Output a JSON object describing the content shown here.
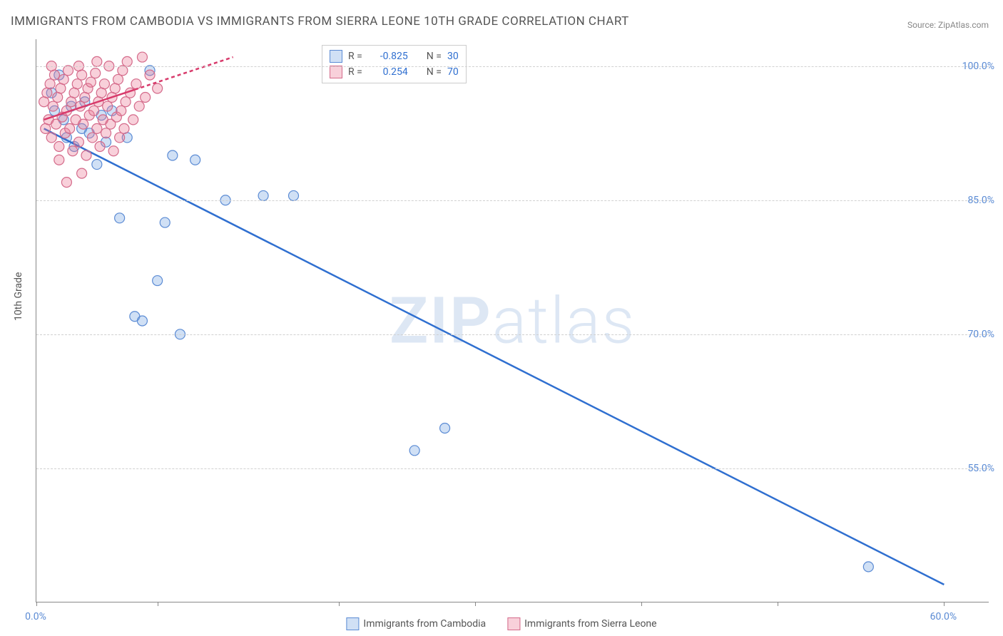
{
  "title": "IMMIGRANTS FROM CAMBODIA VS IMMIGRANTS FROM SIERRA LEONE 10TH GRADE CORRELATION CHART",
  "source": "Source: ZipAtlas.com",
  "watermark": {
    "prefix": "ZIP",
    "suffix": "atlas"
  },
  "ylabel": "10th Grade",
  "chart": {
    "type": "scatter",
    "background_color": "#ffffff",
    "grid_color": "#d0d0d0",
    "axis_color": "#888888",
    "label_fontsize": 14,
    "title_fontsize": 17,
    "xlim": [
      0,
      63
    ],
    "ylim": [
      40,
      103
    ],
    "y_ticks": [
      {
        "v": 100,
        "label": "100.0%"
      },
      {
        "v": 85,
        "label": "85.0%"
      },
      {
        "v": 70,
        "label": "70.0%"
      },
      {
        "v": 55,
        "label": "55.0%"
      }
    ],
    "x_ticks_major": [
      0,
      60
    ],
    "x_tick_labels": [
      {
        "v": 0,
        "label": "0.0%"
      },
      {
        "v": 60,
        "label": "60.0%"
      }
    ],
    "x_ticks_minor": [
      8,
      20,
      29,
      40,
      49
    ],
    "marker_radius": 7,
    "marker_stroke_width": 1.2,
    "series": [
      {
        "id": "cambodia",
        "label": "Immigrants from Cambodia",
        "fill": "rgba(120,165,225,0.35)",
        "stroke": "#5b8bd4",
        "R": "-0.825",
        "N": "30",
        "trend": {
          "stroke": "#2f6fd0",
          "width": 2.5,
          "p1": {
            "x": 0.5,
            "y": 93
          },
          "p2": {
            "x": 60,
            "y": 42
          },
          "dashed_from_x": null
        },
        "points": [
          {
            "x": 1.0,
            "y": 97
          },
          {
            "x": 1.2,
            "y": 95
          },
          {
            "x": 1.5,
            "y": 99
          },
          {
            "x": 1.8,
            "y": 94
          },
          {
            "x": 2.0,
            "y": 92
          },
          {
            "x": 2.3,
            "y": 95.5
          },
          {
            "x": 2.5,
            "y": 91
          },
          {
            "x": 3.0,
            "y": 93
          },
          {
            "x": 3.2,
            "y": 96
          },
          {
            "x": 3.5,
            "y": 92.5
          },
          {
            "x": 4.0,
            "y": 89
          },
          {
            "x": 4.3,
            "y": 94.5
          },
          {
            "x": 4.6,
            "y": 91.5
          },
          {
            "x": 5.0,
            "y": 95
          },
          {
            "x": 5.5,
            "y": 83
          },
          {
            "x": 6.0,
            "y": 92
          },
          {
            "x": 6.5,
            "y": 72
          },
          {
            "x": 7.0,
            "y": 71.5
          },
          {
            "x": 8.0,
            "y": 76
          },
          {
            "x": 8.5,
            "y": 82.5
          },
          {
            "x": 9.0,
            "y": 90
          },
          {
            "x": 9.5,
            "y": 70
          },
          {
            "x": 10.5,
            "y": 89.5
          },
          {
            "x": 12.5,
            "y": 85
          },
          {
            "x": 15,
            "y": 85.5
          },
          {
            "x": 17,
            "y": 85.5
          },
          {
            "x": 25,
            "y": 57
          },
          {
            "x": 27,
            "y": 59.5
          },
          {
            "x": 55,
            "y": 44
          },
          {
            "x": 7.5,
            "y": 99.5
          }
        ]
      },
      {
        "id": "sierra_leone",
        "label": "Immigrants from Sierra Leone",
        "fill": "rgba(235,120,150,0.35)",
        "stroke": "#d46a8a",
        "R": "0.254",
        "N": "70",
        "trend": {
          "stroke": "#d83a6b",
          "width": 2.5,
          "p1": {
            "x": 0.5,
            "y": 94
          },
          "p2": {
            "x": 13,
            "y": 101
          },
          "dashed_from_x": 6.5
        },
        "points": [
          {
            "x": 0.5,
            "y": 96
          },
          {
            "x": 0.6,
            "y": 93
          },
          {
            "x": 0.7,
            "y": 97
          },
          {
            "x": 0.8,
            "y": 94
          },
          {
            "x": 0.9,
            "y": 98
          },
          {
            "x": 1.0,
            "y": 92
          },
          {
            "x": 1.1,
            "y": 95.5
          },
          {
            "x": 1.2,
            "y": 99
          },
          {
            "x": 1.3,
            "y": 93.5
          },
          {
            "x": 1.4,
            "y": 96.5
          },
          {
            "x": 1.5,
            "y": 91
          },
          {
            "x": 1.6,
            "y": 97.5
          },
          {
            "x": 1.7,
            "y": 94.3
          },
          {
            "x": 1.8,
            "y": 98.5
          },
          {
            "x": 1.9,
            "y": 92.5
          },
          {
            "x": 2.0,
            "y": 95
          },
          {
            "x": 2.1,
            "y": 99.5
          },
          {
            "x": 2.2,
            "y": 93
          },
          {
            "x": 2.3,
            "y": 96
          },
          {
            "x": 2.4,
            "y": 90.5
          },
          {
            "x": 2.5,
            "y": 97
          },
          {
            "x": 2.6,
            "y": 94
          },
          {
            "x": 2.7,
            "y": 98
          },
          {
            "x": 2.8,
            "y": 91.5
          },
          {
            "x": 2.9,
            "y": 95.5
          },
          {
            "x": 3.0,
            "y": 99
          },
          {
            "x": 3.1,
            "y": 93.5
          },
          {
            "x": 3.2,
            "y": 96.5
          },
          {
            "x": 3.3,
            "y": 90
          },
          {
            "x": 3.4,
            "y": 97.5
          },
          {
            "x": 3.5,
            "y": 94.5
          },
          {
            "x": 3.6,
            "y": 98.2
          },
          {
            "x": 3.7,
            "y": 92
          },
          {
            "x": 3.8,
            "y": 95
          },
          {
            "x": 3.9,
            "y": 99.2
          },
          {
            "x": 4.0,
            "y": 93
          },
          {
            "x": 4.1,
            "y": 96
          },
          {
            "x": 4.2,
            "y": 91
          },
          {
            "x": 4.3,
            "y": 97
          },
          {
            "x": 4.4,
            "y": 94
          },
          {
            "x": 4.5,
            "y": 98
          },
          {
            "x": 4.6,
            "y": 92.5
          },
          {
            "x": 4.7,
            "y": 95.5
          },
          {
            "x": 4.8,
            "y": 100
          },
          {
            "x": 4.9,
            "y": 93.5
          },
          {
            "x": 5.0,
            "y": 96.5
          },
          {
            "x": 5.1,
            "y": 90.5
          },
          {
            "x": 5.2,
            "y": 97.5
          },
          {
            "x": 5.3,
            "y": 94.3
          },
          {
            "x": 5.4,
            "y": 98.5
          },
          {
            "x": 5.5,
            "y": 92
          },
          {
            "x": 5.6,
            "y": 95
          },
          {
            "x": 5.7,
            "y": 99.5
          },
          {
            "x": 5.8,
            "y": 93
          },
          {
            "x": 5.9,
            "y": 96
          },
          {
            "x": 6.0,
            "y": 100.5
          },
          {
            "x": 6.2,
            "y": 97
          },
          {
            "x": 6.4,
            "y": 94
          },
          {
            "x": 6.6,
            "y": 98
          },
          {
            "x": 6.8,
            "y": 95.5
          },
          {
            "x": 7.0,
            "y": 101
          },
          {
            "x": 7.2,
            "y": 96.5
          },
          {
            "x": 7.5,
            "y": 99
          },
          {
            "x": 8.0,
            "y": 97.5
          },
          {
            "x": 2.0,
            "y": 87
          },
          {
            "x": 3.0,
            "y": 88
          },
          {
            "x": 1.5,
            "y": 89.5
          },
          {
            "x": 2.8,
            "y": 100
          },
          {
            "x": 4.0,
            "y": 100.5
          },
          {
            "x": 1.0,
            "y": 100
          }
        ]
      }
    ],
    "legend_top": {
      "R_label": "R =",
      "N_label": "N =",
      "R_color": "#2f6fd0",
      "N_color": "#2f6fd0",
      "text_color": "#555555"
    }
  }
}
